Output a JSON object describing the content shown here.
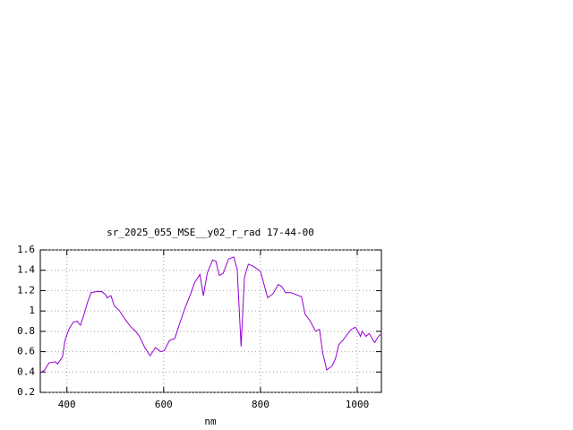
{
  "chart_data": {
    "type": "line",
    "title": "sr_2025_055_MSE__y02_r_rad 17-44-00",
    "x_label": "nm",
    "x": [
      345,
      354,
      363,
      376,
      381,
      391,
      396,
      404,
      413,
      421,
      428,
      435,
      443,
      450,
      461,
      472,
      480,
      483,
      491,
      498,
      509,
      520,
      531,
      542,
      550,
      561,
      572,
      583,
      594,
      601,
      612,
      623,
      634,
      645,
      656,
      664,
      675,
      682,
      690,
      701,
      708,
      715,
      723,
      734,
      745,
      752,
      760,
      767,
      775,
      785,
      800,
      815,
      826,
      837,
      844,
      852,
      863,
      874,
      885,
      892,
      903,
      914,
      922,
      929,
      937,
      948,
      955,
      962,
      970,
      981,
      988,
      996,
      999,
      1007,
      1010,
      1018,
      1025,
      1033,
      1036,
      1044,
      1048
    ],
    "series": [
      {
        "color": "#9400d3",
        "values": [
          0.39,
          0.42,
          0.49,
          0.5,
          0.48,
          0.55,
          0.71,
          0.82,
          0.89,
          0.9,
          0.86,
          0.96,
          1.09,
          1.18,
          1.19,
          1.19,
          1.16,
          1.13,
          1.15,
          1.05,
          1.0,
          0.92,
          0.85,
          0.8,
          0.75,
          0.64,
          0.56,
          0.64,
          0.6,
          0.61,
          0.71,
          0.73,
          0.89,
          1.04,
          1.17,
          1.28,
          1.36,
          1.15,
          1.37,
          1.5,
          1.49,
          1.35,
          1.37,
          1.51,
          1.53,
          1.41,
          0.65,
          1.33,
          1.46,
          1.44,
          1.39,
          1.13,
          1.17,
          1.26,
          1.24,
          1.18,
          1.18,
          1.16,
          1.14,
          0.97,
          0.9,
          0.8,
          0.82,
          0.58,
          0.42,
          0.46,
          0.53,
          0.67,
          0.71,
          0.78,
          0.82,
          0.84,
          0.82,
          0.75,
          0.8,
          0.75,
          0.78,
          0.71,
          0.69,
          0.75,
          0.77
        ]
      }
    ],
    "xlim": [
      345,
      1050
    ],
    "xticks": [
      400,
      600,
      800,
      1000
    ],
    "ylim": [
      0.2,
      1.6
    ],
    "yticks": [
      0.2,
      0.4,
      0.6,
      0.8,
      1,
      1.2,
      1.4,
      1.6
    ],
    "grid": true
  }
}
